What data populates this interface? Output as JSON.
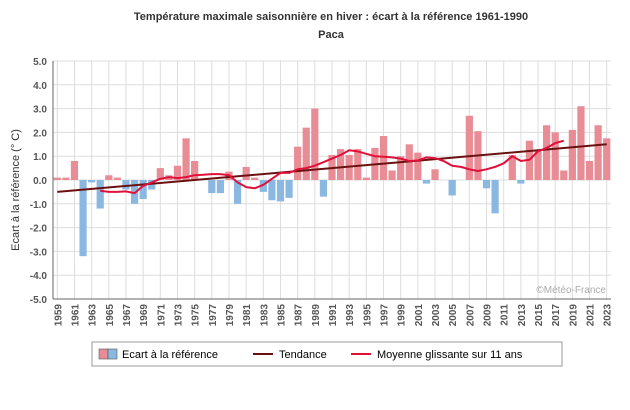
{
  "chart_data": {
    "type": "bar",
    "title": "Température maximale saisonnière en hiver : écart à la référence 1961-1990",
    "subtitle": "Paca",
    "ylabel": "Ecart à la référence (° C)",
    "xlabel": "",
    "ylim": [
      -5.0,
      5.0
    ],
    "yticks": [
      "5.0",
      "4.0",
      "3.0",
      "2.0",
      "1.0",
      "0.0",
      "-1.0",
      "-2.0",
      "-3.0",
      "-4.0",
      "-5.0"
    ],
    "xticks": [
      "1959",
      "1961",
      "1963",
      "1965",
      "1967",
      "1969",
      "1971",
      "1973",
      "1975",
      "1977",
      "1979",
      "1981",
      "1983",
      "1985",
      "1987",
      "1989",
      "1991",
      "1993",
      "1995",
      "1997",
      "1999",
      "2001",
      "2003",
      "2005",
      "2007",
      "2009",
      "2011",
      "2013",
      "2015",
      "2017",
      "2019",
      "2021",
      "2023"
    ],
    "grid": true,
    "watermark": "©Météo-France",
    "legend_position": "bottom",
    "years": [
      1959,
      1960,
      1961,
      1962,
      1963,
      1964,
      1965,
      1966,
      1967,
      1968,
      1969,
      1970,
      1971,
      1972,
      1973,
      1974,
      1975,
      1976,
      1977,
      1978,
      1979,
      1980,
      1981,
      1982,
      1983,
      1984,
      1985,
      1986,
      1987,
      1988,
      1989,
      1990,
      1991,
      1992,
      1993,
      1994,
      1995,
      1996,
      1997,
      1998,
      1999,
      2000,
      2001,
      2002,
      2003,
      2004,
      2005,
      2006,
      2007,
      2008,
      2009,
      2010,
      2011,
      2012,
      2013,
      2014,
      2015,
      2016,
      2017,
      2018,
      2019,
      2020,
      2021,
      2022,
      2023
    ],
    "series": [
      {
        "name": "Ecart à la référence",
        "kind": "bar",
        "positive_color": "#e88d95",
        "negative_color": "#8ab8e0",
        "values": [
          0.1,
          0.1,
          0.8,
          -3.2,
          -0.1,
          -1.2,
          0.2,
          0.1,
          -0.4,
          -1.0,
          -0.8,
          -0.4,
          0.5,
          0.2,
          0.6,
          1.75,
          0.8,
          0.05,
          -0.55,
          -0.55,
          0.35,
          -1.0,
          0.55,
          0.1,
          -0.5,
          -0.85,
          -0.9,
          -0.75,
          1.4,
          2.2,
          3.0,
          -0.7,
          1.05,
          1.3,
          1.05,
          1.3,
          0.1,
          1.35,
          1.85,
          0.4,
          1.0,
          1.5,
          1.15,
          -0.15,
          0.45,
          0.0,
          -0.65,
          0.0,
          2.7,
          2.05,
          -0.35,
          -1.4,
          0.0,
          1.05,
          -0.15,
          1.65,
          1.2,
          2.3,
          2.0,
          0.4,
          2.1,
          3.1,
          0.8,
          2.3,
          1.75
        ]
      },
      {
        "name": "Tendance",
        "kind": "line",
        "color": "#6b1010",
        "values": [
          -0.5,
          1.5
        ]
      },
      {
        "name": "Moyenne glissante sur 11 ans",
        "kind": "line",
        "color": "#e0103a",
        "x": [
          1964,
          1965,
          1966,
          1967,
          1968,
          1969,
          1970,
          1971,
          1972,
          1973,
          1974,
          1975,
          1976,
          1977,
          1978,
          1979,
          1980,
          1981,
          1982,
          1983,
          1984,
          1985,
          1986,
          1987,
          1988,
          1989,
          1990,
          1991,
          1992,
          1993,
          1994,
          1995,
          1996,
          1997,
          1998,
          1999,
          2000,
          2001,
          2002,
          2003,
          2004,
          2005,
          2006,
          2007,
          2008,
          2009,
          2010,
          2011,
          2012,
          2013,
          2014,
          2015,
          2016,
          2017,
          2018
        ],
        "values": [
          -0.45,
          -0.5,
          -0.5,
          -0.48,
          -0.55,
          -0.25,
          -0.1,
          0.05,
          0.12,
          0.08,
          0.12,
          0.2,
          0.22,
          0.25,
          0.25,
          0.2,
          -0.1,
          -0.3,
          -0.35,
          -0.2,
          0.05,
          0.3,
          0.3,
          0.45,
          0.5,
          0.6,
          0.75,
          0.9,
          1.05,
          1.25,
          1.2,
          1.1,
          1.0,
          0.98,
          0.95,
          0.9,
          0.8,
          0.82,
          0.95,
          0.92,
          0.8,
          0.6,
          0.55,
          0.45,
          0.38,
          0.45,
          0.55,
          0.7,
          1.0,
          0.8,
          0.85,
          1.2,
          1.35,
          1.55,
          1.65
        ]
      }
    ]
  }
}
